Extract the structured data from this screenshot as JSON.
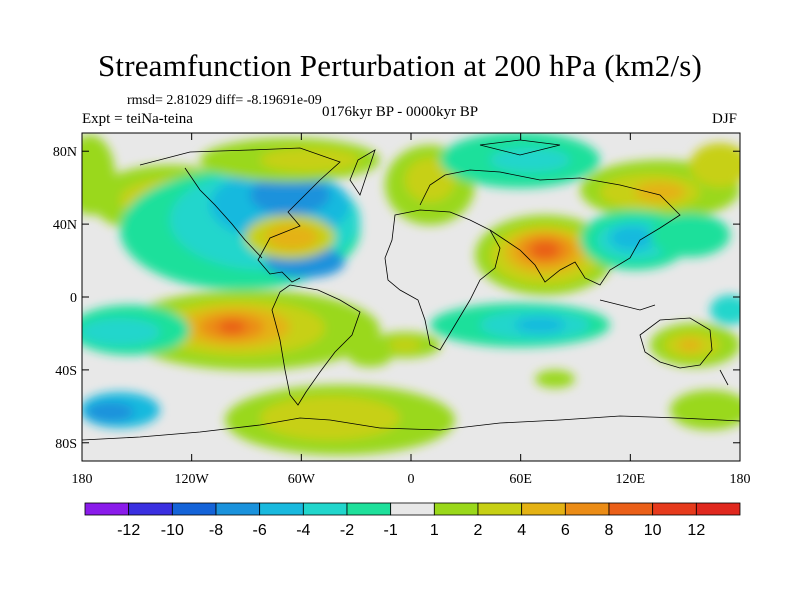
{
  "header": {
    "title": "Streamfunction Perturbation at 200 hPa (km2/s)",
    "stats": "rmsd= 2.81029 diff= -8.19691e-09",
    "experiment": "Expt = teiNa-teina",
    "time_period": "0176kyr BP - 0000kyr BP",
    "season": "DJF"
  },
  "chart_data": {
    "type": "heatmap",
    "title": "Streamfunction Perturbation at 200 hPa (km2/s)",
    "x_axis": {
      "range": [
        -180,
        180
      ],
      "ticks": [
        {
          "value": -180,
          "label": "180"
        },
        {
          "value": -120,
          "label": "120W"
        },
        {
          "value": -60,
          "label": "60W"
        },
        {
          "value": 0,
          "label": "0"
        },
        {
          "value": 60,
          "label": "60E"
        },
        {
          "value": 120,
          "label": "120E"
        },
        {
          "value": 180,
          "label": "180"
        }
      ]
    },
    "y_axis": {
      "range": [
        -90,
        90
      ],
      "ticks": [
        {
          "value": 80,
          "label": "80N"
        },
        {
          "value": 40,
          "label": "40N"
        },
        {
          "value": 0,
          "label": "0"
        },
        {
          "value": -40,
          "label": "40S"
        },
        {
          "value": -80,
          "label": "80S"
        }
      ]
    },
    "colorbar": {
      "labels": [
        "-12",
        "-10",
        "-8",
        "-6",
        "-4",
        "-2",
        "-1",
        "1",
        "2",
        "4",
        "6",
        "8",
        "10",
        "12"
      ],
      "colors": [
        "#8a1bea",
        "#3a2fe0",
        "#1463d8",
        "#1a92dc",
        "#19b9de",
        "#21d6cc",
        "#1ee09b",
        "#e8e8e8",
        "#9ad81a",
        "#c7d014",
        "#e4b214",
        "#eb8c16",
        "#ea5f18",
        "#e63a1c",
        "#e0281e"
      ]
    },
    "features": [
      {
        "name": "positive-max-asia",
        "lon": 75,
        "lat": 25,
        "value": 12
      },
      {
        "name": "positive-max-south-america",
        "lon": -90,
        "lat": -20,
        "value": 10
      },
      {
        "name": "positive-center-north-atlantic",
        "lon": -70,
        "lat": 35,
        "value": 6
      },
      {
        "name": "positive-center-australia",
        "lon": 140,
        "lat": -35,
        "value": 6
      },
      {
        "name": "negative-center-north-america",
        "lon": -90,
        "lat": 60,
        "value": -6
      },
      {
        "name": "negative-center-pacific",
        "lon": 130,
        "lat": 30,
        "value": -6
      },
      {
        "name": "negative-center-indian-ocean",
        "lon": 60,
        "lat": -20,
        "value": -4
      }
    ]
  }
}
